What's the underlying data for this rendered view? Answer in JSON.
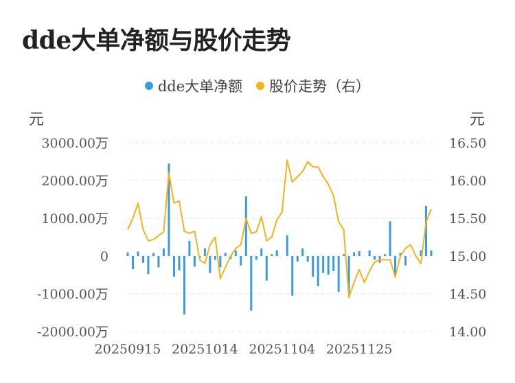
{
  "title": "dde大单净额与股价走势",
  "chart_data": {
    "type": "bar+line",
    "title": "dde大单净额与股价走势",
    "legend": {
      "placement": "top-center",
      "items": [
        "dde大单净额",
        "股价走势（右）"
      ]
    },
    "colors": {
      "bar": "#3a9be0",
      "line": "#f4b21b",
      "grid": "#e6e6e6"
    },
    "y_left": {
      "unit": "元",
      "ylim": [
        -2000,
        3000
      ],
      "ticks": [
        3000,
        2000,
        1000,
        0,
        -1000,
        -2000
      ],
      "tick_labels": [
        "3000.00万",
        "2000.00万",
        "1000.00万",
        "0",
        "-1000.00万",
        "-2000.00万"
      ]
    },
    "y_right": {
      "unit": "元",
      "ylim": [
        14.0,
        16.5
      ],
      "ticks": [
        16.5,
        16.0,
        15.5,
        15.0,
        14.5,
        14.0
      ],
      "tick_labels": [
        "16.50",
        "16.00",
        "15.50",
        "15.00",
        "14.50",
        "14.00"
      ]
    },
    "x_tick_labels": [
      {
        "index": 0,
        "label": "20250915"
      },
      {
        "index": 15,
        "label": "20251014"
      },
      {
        "index": 30,
        "label": "20251104"
      },
      {
        "index": 45,
        "label": "20251125"
      }
    ],
    "grid": true,
    "series": [
      {
        "name": "dde大单净额",
        "type": "bar",
        "axis": "left",
        "values": [
          100,
          -350,
          120,
          -180,
          -480,
          80,
          -300,
          200,
          2450,
          -550,
          -380,
          -1550,
          400,
          -280,
          -50,
          200,
          -450,
          -100,
          -300,
          80,
          -80,
          150,
          -250,
          1580,
          -1450,
          -100,
          200,
          -650,
          50,
          150,
          0,
          550,
          -1050,
          -150,
          200,
          -150,
          -550,
          -800,
          -450,
          -500,
          -400,
          -950,
          50,
          -1000,
          100,
          130,
          0,
          150,
          -100,
          -180,
          50,
          920,
          -500,
          80,
          -250,
          0,
          0,
          150,
          1330,
          150
        ]
      },
      {
        "name": "股价走势（右）",
        "type": "line",
        "axis": "right",
        "values": [
          15.35,
          15.5,
          15.7,
          15.35,
          15.2,
          15.22,
          15.27,
          15.32,
          16.1,
          15.7,
          15.73,
          15.33,
          15.3,
          15.33,
          14.95,
          14.9,
          15.15,
          15.25,
          14.7,
          14.85,
          15.0,
          15.1,
          15.15,
          15.5,
          15.3,
          15.32,
          15.52,
          15.2,
          15.25,
          15.48,
          15.58,
          16.27,
          15.98,
          16.05,
          16.12,
          16.25,
          16.18,
          16.18,
          16.05,
          15.95,
          15.8,
          15.45,
          15.35,
          14.45,
          14.65,
          14.82,
          14.65,
          14.8,
          14.92,
          14.95,
          14.95,
          14.95,
          14.72,
          15.0,
          15.1,
          15.15,
          15.0,
          14.9,
          15.45,
          15.62
        ]
      }
    ]
  }
}
